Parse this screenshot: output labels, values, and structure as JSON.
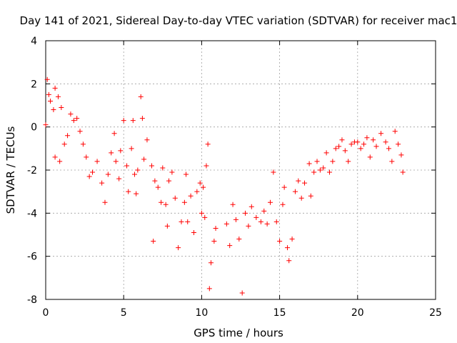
{
  "chart_data": {
    "type": "scatter",
    "title": "Day 141 of 2021, Sidereal Day-to-day VTEC variation (SDTVAR) for receiver mac1",
    "xlabel": "GPS time / hours",
    "ylabel": "SDTVAR / TECUs",
    "xlim": [
      0,
      25
    ],
    "ylim": [
      -8,
      4
    ],
    "xticks": [
      0,
      5,
      10,
      15,
      20,
      25
    ],
    "yticks": [
      -8,
      -6,
      -4,
      -2,
      0,
      2,
      4
    ],
    "xtick_labels": [
      "0",
      "5",
      "10",
      "15",
      "20",
      "25"
    ],
    "ytick_labels": [
      "-8",
      "-6",
      "-4",
      "-2",
      "0",
      "2",
      "4"
    ],
    "grid": true,
    "marker": "+",
    "series_color": "#ff0000",
    "series": [
      {
        "name": "SDTVAR",
        "points": [
          [
            0.0,
            0.1
          ],
          [
            0.1,
            2.2
          ],
          [
            0.2,
            1.5
          ],
          [
            0.3,
            1.2
          ],
          [
            0.5,
            0.8
          ],
          [
            0.6,
            1.8
          ],
          [
            0.8,
            1.4
          ],
          [
            1.0,
            0.9
          ],
          [
            0.6,
            -1.4
          ],
          [
            0.9,
            -1.6
          ],
          [
            1.2,
            -0.8
          ],
          [
            1.4,
            -0.4
          ],
          [
            1.6,
            0.6
          ],
          [
            1.8,
            0.3
          ],
          [
            2.0,
            0.4
          ],
          [
            2.2,
            -0.2
          ],
          [
            2.4,
            -0.8
          ],
          [
            2.6,
            -1.4
          ],
          [
            2.8,
            -2.3
          ],
          [
            3.0,
            -2.1
          ],
          [
            3.3,
            -1.6
          ],
          [
            3.6,
            -2.6
          ],
          [
            3.8,
            -3.5
          ],
          [
            4.0,
            -2.2
          ],
          [
            4.2,
            -1.2
          ],
          [
            4.4,
            -0.3
          ],
          [
            4.5,
            -1.6
          ],
          [
            4.7,
            -2.4
          ],
          [
            4.8,
            -1.1
          ],
          [
            5.0,
            0.3
          ],
          [
            5.2,
            -1.8
          ],
          [
            5.3,
            -3.0
          ],
          [
            5.5,
            -1.0
          ],
          [
            5.6,
            0.3
          ],
          [
            5.7,
            -2.2
          ],
          [
            5.8,
            -3.1
          ],
          [
            5.9,
            -2.0
          ],
          [
            6.1,
            1.4
          ],
          [
            6.2,
            0.4
          ],
          [
            6.3,
            -1.5
          ],
          [
            6.5,
            -0.6
          ],
          [
            6.8,
            -1.8
          ],
          [
            7.0,
            -2.5
          ],
          [
            6.9,
            -5.3
          ],
          [
            7.2,
            -2.8
          ],
          [
            7.4,
            -3.5
          ],
          [
            7.5,
            -1.9
          ],
          [
            7.7,
            -3.6
          ],
          [
            7.8,
            -4.6
          ],
          [
            7.9,
            -2.5
          ],
          [
            8.1,
            -2.1
          ],
          [
            8.3,
            -3.3
          ],
          [
            8.5,
            -5.6
          ],
          [
            8.7,
            -4.4
          ],
          [
            8.9,
            -3.5
          ],
          [
            9.0,
            -2.2
          ],
          [
            9.1,
            -4.4
          ],
          [
            9.3,
            -3.2
          ],
          [
            9.5,
            -4.9
          ],
          [
            9.7,
            -3.0
          ],
          [
            9.9,
            -2.6
          ],
          [
            10.0,
            -4.0
          ],
          [
            10.1,
            -2.8
          ],
          [
            10.2,
            -4.2
          ],
          [
            10.3,
            -1.8
          ],
          [
            10.4,
            -0.8
          ],
          [
            10.5,
            -7.5
          ],
          [
            10.6,
            -6.3
          ],
          [
            10.8,
            -5.3
          ],
          [
            10.9,
            -4.7
          ],
          [
            11.6,
            -4.5
          ],
          [
            11.8,
            -5.5
          ],
          [
            12.0,
            -3.6
          ],
          [
            12.2,
            -4.3
          ],
          [
            12.4,
            -5.2
          ],
          [
            12.6,
            -7.7
          ],
          [
            12.8,
            -4.0
          ],
          [
            13.0,
            -4.6
          ],
          [
            13.2,
            -3.7
          ],
          [
            13.5,
            -4.2
          ],
          [
            13.8,
            -4.4
          ],
          [
            14.0,
            -3.9
          ],
          [
            14.2,
            -4.5
          ],
          [
            14.4,
            -3.5
          ],
          [
            14.6,
            -2.1
          ],
          [
            14.8,
            -4.4
          ],
          [
            15.0,
            -5.3
          ],
          [
            15.2,
            -3.6
          ],
          [
            15.3,
            -2.8
          ],
          [
            15.5,
            -5.6
          ],
          [
            15.6,
            -6.2
          ],
          [
            15.8,
            -5.2
          ],
          [
            16.0,
            -3.0
          ],
          [
            16.2,
            -2.5
          ],
          [
            16.4,
            -3.3
          ],
          [
            16.6,
            -2.6
          ],
          [
            16.9,
            -1.7
          ],
          [
            17.0,
            -3.2
          ],
          [
            17.2,
            -2.1
          ],
          [
            17.4,
            -1.6
          ],
          [
            17.6,
            -2.0
          ],
          [
            17.8,
            -1.9
          ],
          [
            18.0,
            -1.2
          ],
          [
            18.2,
            -2.1
          ],
          [
            18.4,
            -1.6
          ],
          [
            18.6,
            -1.0
          ],
          [
            18.8,
            -0.9
          ],
          [
            19.0,
            -0.6
          ],
          [
            19.2,
            -1.1
          ],
          [
            19.4,
            -1.6
          ],
          [
            19.6,
            -0.8
          ],
          [
            19.8,
            -0.7
          ],
          [
            20.0,
            -0.7
          ],
          [
            20.2,
            -1.0
          ],
          [
            20.4,
            -0.8
          ],
          [
            20.6,
            -0.5
          ],
          [
            20.8,
            -1.4
          ],
          [
            21.0,
            -0.6
          ],
          [
            21.2,
            -0.9
          ],
          [
            21.5,
            -0.3
          ],
          [
            21.8,
            -0.7
          ],
          [
            22.0,
            -1.0
          ],
          [
            22.2,
            -1.6
          ],
          [
            22.4,
            -0.2
          ],
          [
            22.6,
            -0.8
          ],
          [
            22.8,
            -1.3
          ],
          [
            22.9,
            -2.1
          ]
        ]
      }
    ]
  }
}
